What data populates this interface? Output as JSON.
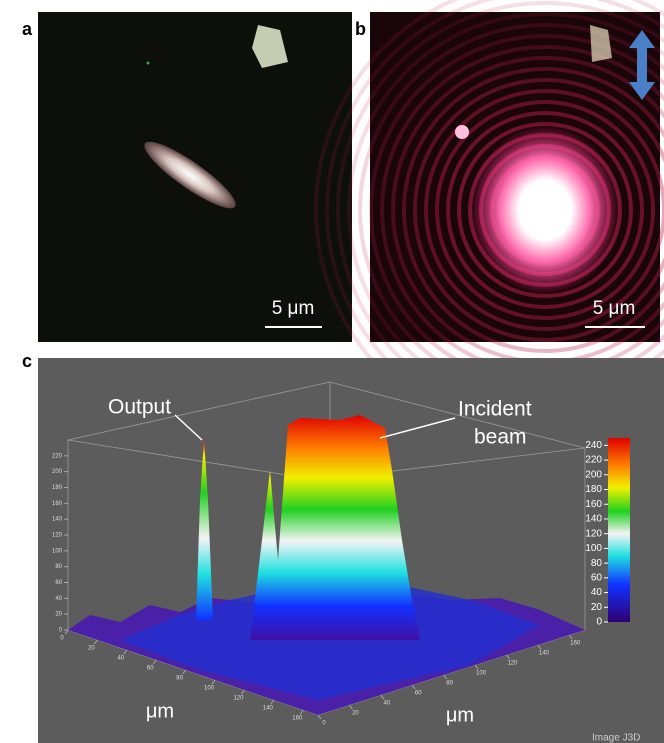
{
  "panels": {
    "a": {
      "label": "a",
      "scale_bar": "5 μm"
    },
    "b": {
      "label": "b",
      "scale_bar": "5 μm"
    },
    "c": {
      "label": "c",
      "annotations": {
        "output": "Output",
        "incident": [
          "Incident",
          "beam"
        ]
      },
      "zticks": [
        0,
        20,
        40,
        60,
        80,
        100,
        120,
        140,
        160,
        180,
        200,
        220
      ],
      "zlim": [
        0,
        240
      ],
      "x_axis": {
        "label": "μm",
        "ticks": [
          0,
          20,
          40,
          60,
          80,
          100,
          120,
          140,
          160
        ],
        "lim": [
          0,
          170
        ]
      },
      "y_axis": {
        "label": "μm",
        "ticks": [
          0,
          20,
          40,
          60,
          80,
          100,
          120,
          140,
          160
        ],
        "lim": [
          0,
          170
        ]
      },
      "colorbar": {
        "ticks": [
          0,
          20,
          40,
          60,
          80,
          100,
          120,
          140,
          160,
          180,
          200,
          220,
          240
        ],
        "lim": [
          0,
          250
        ]
      },
      "watermark": "Image J3D"
    }
  }
}
